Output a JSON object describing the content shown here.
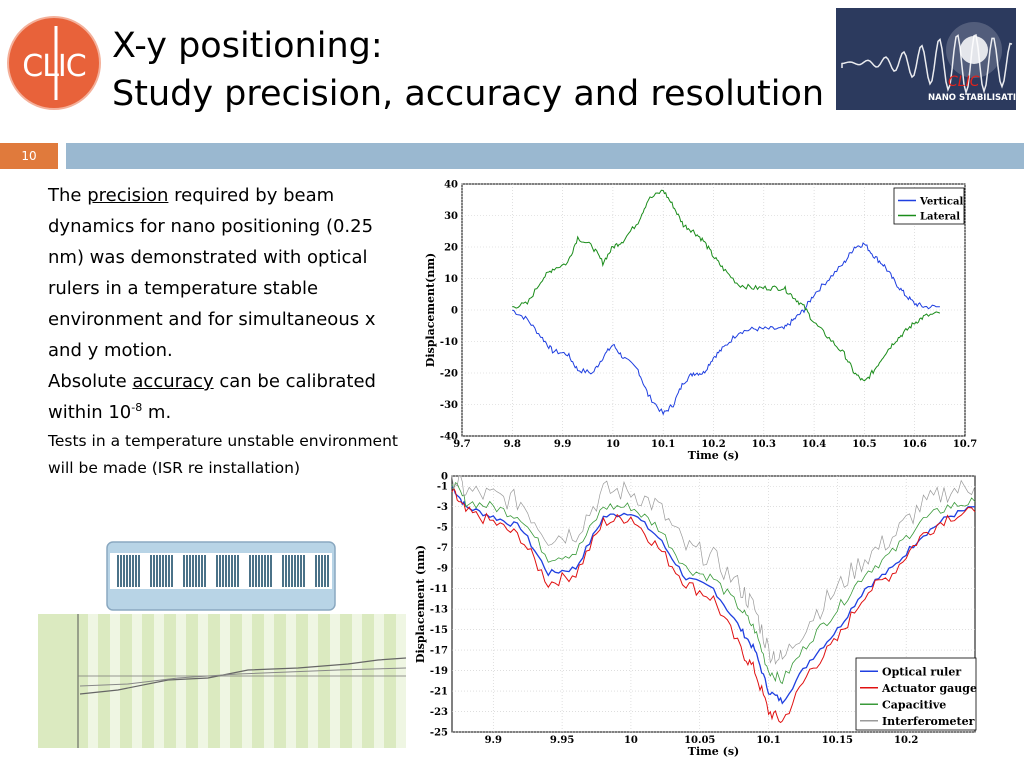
{
  "title": {
    "line1": "X-y positioning:",
    "line2": "Study precision, accuracy and resolution"
  },
  "page_number": "10",
  "logo_left": {
    "text": "CLIC"
  },
  "logo_right": {
    "line1": "CLIC",
    "line2": "NANO STABILISATION"
  },
  "text": {
    "p1_a": "The ",
    "p1_link": "precision",
    "p1_b": " required by beam dynamics for nano positioning (0.25 nm) was demonstrated with optical rulers in a temperature stable environment and for simultaneous x and y motion.",
    "p2_a": "Absolute ",
    "p2_link": "accuracy",
    "p2_b": " can be calibrated within 10",
    "p2_exp": "-8",
    "p2_c": " m.",
    "p3": "Tests in a temperature unstable environment will be made (ISR re installation)"
  },
  "colors": {
    "orange": "#e07a3c",
    "band": "#9ab8d0",
    "vertical": "#1f3fe0",
    "lateral": "#1a8c1a",
    "optical": "#1f3fe0",
    "actuator": "#e01010",
    "capacitive": "#3a9a3a",
    "interferometer": "#9a9a9a"
  },
  "chart_data": [
    {
      "type": "line",
      "xlabel": "Time (s)",
      "ylabel": "Displacement(nm)",
      "xlim": [
        9.7,
        10.7
      ],
      "ylim": [
        -40,
        40
      ],
      "xticks": [
        "9.7",
        "9.8",
        "9.9",
        "10",
        "10.1",
        "10.2",
        "10.3",
        "10.4",
        "10.5",
        "10.6",
        "10.7"
      ],
      "yticks": [
        "40",
        "30",
        "20",
        "10",
        "0",
        "-10",
        "-20",
        "-30",
        "-40"
      ],
      "legend": "top-right",
      "series": [
        {
          "name": "Vertical",
          "x": [
            9.8,
            9.83,
            9.86,
            9.88,
            9.91,
            9.93,
            9.96,
            9.98,
            10.0,
            10.02,
            10.05,
            10.07,
            10.1,
            10.12,
            10.14,
            10.16,
            10.18,
            10.2,
            10.22,
            10.25,
            10.28,
            10.31,
            10.34,
            10.36,
            10.38,
            10.4,
            10.43,
            10.46,
            10.48,
            10.5,
            10.52,
            10.54,
            10.56,
            10.58,
            10.6,
            10.62,
            10.65
          ],
          "y": [
            0,
            -3,
            -9,
            -13,
            -14,
            -19,
            -20,
            -15,
            -11,
            -15,
            -19,
            -27,
            -33,
            -30,
            -23,
            -20,
            -20,
            -15,
            -12,
            -7,
            -6,
            -6,
            -6,
            -3,
            0,
            5,
            10,
            15,
            20,
            21,
            17,
            14,
            9,
            5,
            2,
            1,
            1
          ]
        },
        {
          "name": "Lateral",
          "x": [
            9.8,
            9.83,
            9.86,
            9.88,
            9.91,
            9.93,
            9.96,
            9.98,
            10.0,
            10.02,
            10.05,
            10.07,
            10.1,
            10.12,
            10.14,
            10.16,
            10.18,
            10.2,
            10.22,
            10.25,
            10.28,
            10.31,
            10.34,
            10.36,
            10.38,
            10.4,
            10.43,
            10.46,
            10.48,
            10.5,
            10.52,
            10.54,
            10.56,
            10.58,
            10.6,
            10.62,
            10.65
          ],
          "y": [
            1,
            2,
            10,
            13,
            15,
            23,
            20,
            15,
            20,
            22,
            28,
            35,
            38,
            33,
            27,
            25,
            22,
            17,
            13,
            8,
            7,
            7,
            7,
            4,
            1,
            -4,
            -9,
            -14,
            -20,
            -23,
            -19,
            -14,
            -10,
            -7,
            -4,
            -2,
            -1
          ]
        }
      ]
    },
    {
      "type": "line",
      "xlabel": "Time (s)",
      "ylabel": "Displacement (nm)",
      "xlim": [
        9.87,
        10.25
      ],
      "ylim": [
        -25,
        0
      ],
      "xticks": [
        "9.9",
        "9.95",
        "10",
        "10.05",
        "10.1",
        "10.15",
        "10.2"
      ],
      "yticks": [
        "0",
        "-1",
        "-3",
        "-5",
        "-7",
        "-9",
        "-11",
        "-13",
        "-15",
        "-17",
        "-19",
        "-21",
        "-23",
        "-25"
      ],
      "legend": "bottom-right",
      "series": [
        {
          "name": "Optical ruler",
          "x": [
            9.87,
            9.88,
            9.9,
            9.92,
            9.94,
            9.96,
            9.98,
            10.0,
            10.02,
            10.04,
            10.06,
            10.08,
            10.09,
            10.1,
            10.11,
            10.13,
            10.15,
            10.17,
            10.19,
            10.21,
            10.23,
            10.25
          ],
          "y": [
            -1,
            -3,
            -4,
            -5,
            -9.5,
            -9,
            -4,
            -3.5,
            -6,
            -10,
            -11,
            -15,
            -17,
            -21,
            -22,
            -18,
            -15,
            -11,
            -9,
            -6,
            -4,
            -3
          ]
        },
        {
          "name": "Actuator gauge",
          "x": [
            9.87,
            9.88,
            9.9,
            9.92,
            9.94,
            9.96,
            9.98,
            10.0,
            10.02,
            10.04,
            10.06,
            10.08,
            10.09,
            10.1,
            10.11,
            10.13,
            10.15,
            10.17,
            10.19,
            10.21,
            10.23,
            10.25
          ],
          "y": [
            -1.5,
            -3.5,
            -4.5,
            -6,
            -10.5,
            -9.5,
            -4.5,
            -4,
            -7,
            -10.5,
            -12,
            -17,
            -19,
            -23,
            -24,
            -19,
            -16,
            -11.5,
            -9.5,
            -6,
            -4,
            -3.5
          ]
        },
        {
          "name": "Capacitive",
          "x": [
            9.87,
            9.88,
            9.9,
            9.92,
            9.94,
            9.96,
            9.98,
            10.0,
            10.02,
            10.04,
            10.06,
            10.08,
            10.09,
            10.1,
            10.11,
            10.13,
            10.15,
            10.17,
            10.19,
            10.21,
            10.23,
            10.25
          ],
          "y": [
            -0.5,
            -2.5,
            -3,
            -4,
            -8,
            -7.5,
            -3,
            -3,
            -5,
            -9,
            -10,
            -13,
            -15,
            -19,
            -20,
            -16,
            -13,
            -9.5,
            -7.5,
            -4.5,
            -3,
            -2.5
          ]
        },
        {
          "name": "Interferometer",
          "x": [
            9.87,
            9.88,
            9.9,
            9.92,
            9.94,
            9.96,
            9.98,
            10.0,
            10.02,
            10.04,
            10.06,
            10.08,
            10.09,
            10.1,
            10.11,
            10.13,
            10.15,
            10.17,
            10.19,
            10.21,
            10.23,
            10.25
          ],
          "y": [
            0,
            -1.5,
            -2,
            -2.5,
            -6,
            -5.5,
            -1.5,
            -1.5,
            -3,
            -7,
            -8,
            -11,
            -13,
            -17,
            -18,
            -14,
            -11,
            -8,
            -6,
            -3,
            -1.5,
            -1
          ]
        }
      ]
    }
  ]
}
